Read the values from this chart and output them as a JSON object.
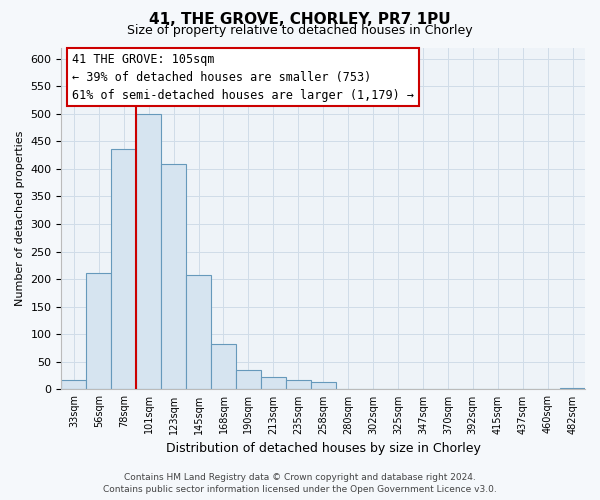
{
  "title": "41, THE GROVE, CHORLEY, PR7 1PU",
  "subtitle": "Size of property relative to detached houses in Chorley",
  "xlabel": "Distribution of detached houses by size in Chorley",
  "ylabel": "Number of detached properties",
  "bar_color": "#d6e4f0",
  "bar_edge_color": "#6699bb",
  "categories": [
    "33sqm",
    "56sqm",
    "78sqm",
    "101sqm",
    "123sqm",
    "145sqm",
    "168sqm",
    "190sqm",
    "213sqm",
    "235sqm",
    "258sqm",
    "280sqm",
    "302sqm",
    "325sqm",
    "347sqm",
    "370sqm",
    "392sqm",
    "415sqm",
    "437sqm",
    "460sqm",
    "482sqm"
  ],
  "values": [
    18,
    211,
    436,
    500,
    408,
    208,
    83,
    35,
    22,
    18,
    13,
    0,
    0,
    0,
    0,
    0,
    0,
    0,
    0,
    0,
    3
  ],
  "ylim": [
    0,
    620
  ],
  "yticks": [
    0,
    50,
    100,
    150,
    200,
    250,
    300,
    350,
    400,
    450,
    500,
    550,
    600
  ],
  "property_line_index": 3,
  "annotation_title": "41 THE GROVE: 105sqm",
  "annotation_line1": "← 39% of detached houses are smaller (753)",
  "annotation_line2": "61% of semi-detached houses are larger (1,179) →",
  "footer_line1": "Contains HM Land Registry data © Crown copyright and database right 2024.",
  "footer_line2": "Contains public sector information licensed under the Open Government Licence v3.0.",
  "property_line_color": "#cc0000",
  "annotation_box_color": "#ffffff",
  "annotation_box_edge": "#cc0000",
  "grid_color": "#d0dce8",
  "background_color": "#f5f8fb",
  "plot_bg_color": "#eef3f8"
}
